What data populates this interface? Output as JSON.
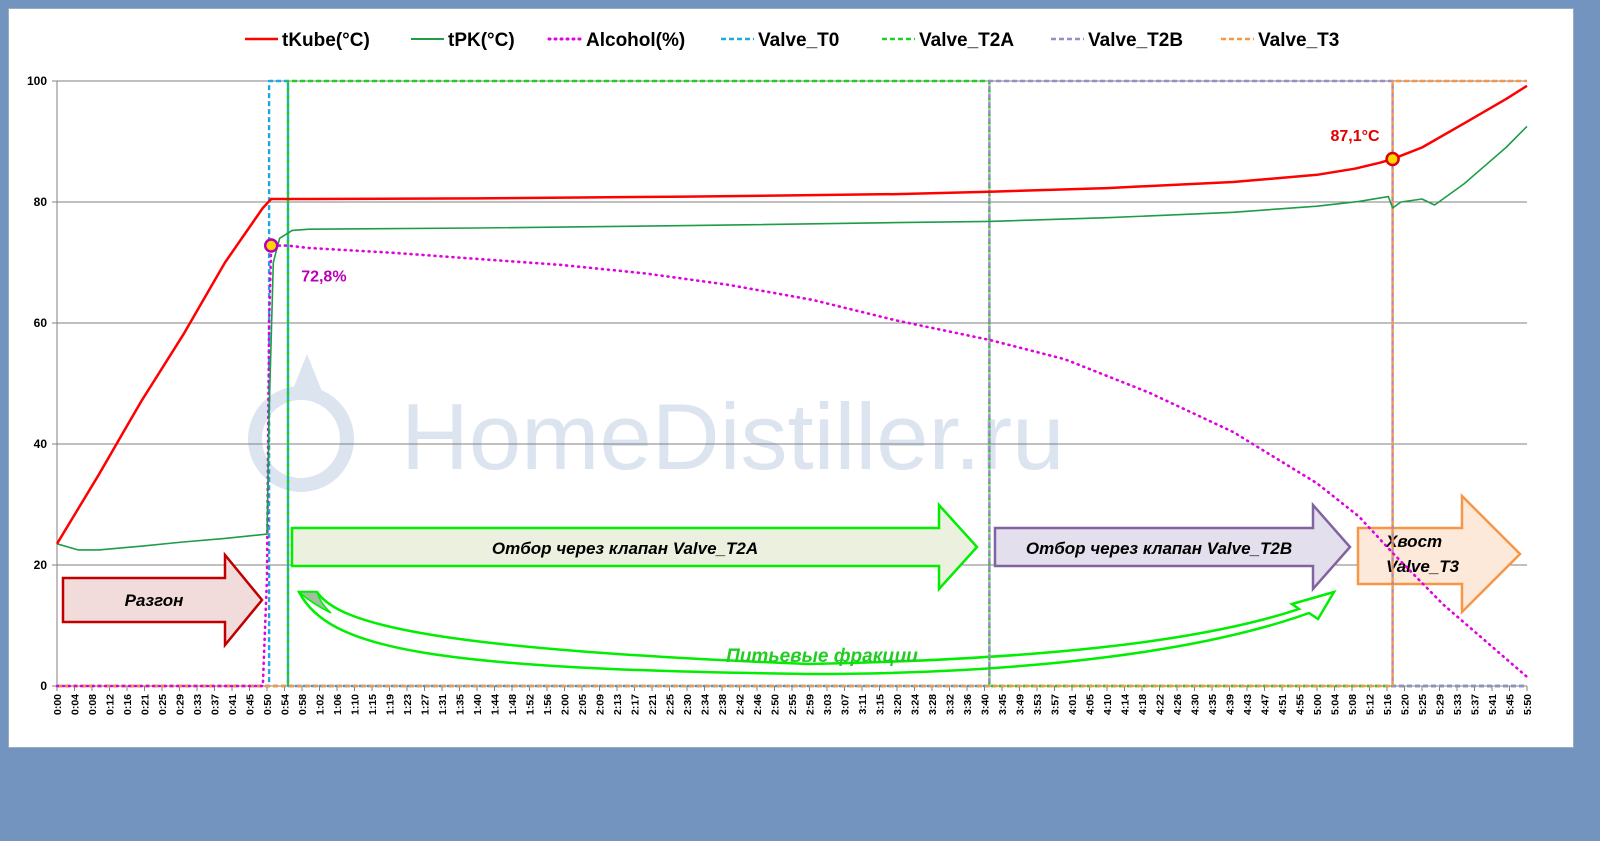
{
  "chart_data": {
    "type": "line",
    "legend_position": "top",
    "grid": true,
    "ylim": [
      0,
      100
    ],
    "yticks": [
      0,
      20,
      40,
      60,
      80,
      100
    ],
    "x_labels": [
      "0:00",
      "0:04",
      "0:08",
      "0:12",
      "0:16",
      "0:21",
      "0:25",
      "0:29",
      "0:33",
      "0:37",
      "0:41",
      "0:45",
      "0:50",
      "0:54",
      "0:58",
      "1:02",
      "1:06",
      "1:10",
      "1:15",
      "1:19",
      "1:23",
      "1:27",
      "1:31",
      "1:35",
      "1:40",
      "1:44",
      "1:48",
      "1:52",
      "1:56",
      "2:00",
      "2:05",
      "2:09",
      "2:13",
      "2:17",
      "2:21",
      "2:25",
      "2:30",
      "2:34",
      "2:38",
      "2:42",
      "2:46",
      "2:50",
      "2:55",
      "2:59",
      "3:03",
      "3:07",
      "3:11",
      "3:15",
      "3:20",
      "3:24",
      "3:28",
      "3:32",
      "3:36",
      "3:40",
      "3:45",
      "3:49",
      "3:53",
      "3:57",
      "4:01",
      "4:05",
      "4:10",
      "4:14",
      "4:18",
      "4:22",
      "4:26",
      "4:30",
      "4:35",
      "4:39",
      "4:43",
      "4:47",
      "4:51",
      "4:55",
      "5:00",
      "5:04",
      "5:08",
      "5:12",
      "5:16",
      "5:20",
      "5:25",
      "5:29",
      "5:33",
      "5:37",
      "5:41",
      "5:45",
      "5:50"
    ],
    "x_range_min": [
      0,
      350
    ],
    "series": [
      {
        "name": "tKube(°C)",
        "color": "#ff0000",
        "style": "solid",
        "width": 2.5,
        "points": [
          [
            0,
            23.5
          ],
          [
            10,
            35
          ],
          [
            20,
            47
          ],
          [
            30,
            58
          ],
          [
            40,
            70
          ],
          [
            49,
            79
          ],
          [
            51,
            80.5
          ],
          [
            60,
            80.5
          ],
          [
            100,
            80.6
          ],
          [
            150,
            80.9
          ],
          [
            200,
            81.3
          ],
          [
            222,
            81.7
          ],
          [
            250,
            82.3
          ],
          [
            280,
            83.3
          ],
          [
            300,
            84.5
          ],
          [
            309,
            85.5
          ],
          [
            315,
            86.5
          ],
          [
            318,
            87.1
          ],
          [
            325,
            89
          ],
          [
            335,
            93
          ],
          [
            345,
            97
          ],
          [
            350,
            99.2
          ]
        ]
      },
      {
        "name": "tPK(°C)",
        "color": "#1f9c48",
        "style": "solid",
        "width": 1.6,
        "points": [
          [
            0,
            23.5
          ],
          [
            5,
            22.5
          ],
          [
            10,
            22.5
          ],
          [
            20,
            23.1
          ],
          [
            30,
            23.8
          ],
          [
            40,
            24.4
          ],
          [
            50,
            25.1
          ],
          [
            50.5,
            45
          ],
          [
            51.5,
            70
          ],
          [
            53,
            74
          ],
          [
            56,
            75.3
          ],
          [
            60,
            75.5
          ],
          [
            100,
            75.7
          ],
          [
            150,
            76.1
          ],
          [
            200,
            76.6
          ],
          [
            222,
            76.8
          ],
          [
            250,
            77.4
          ],
          [
            280,
            78.3
          ],
          [
            300,
            79.3
          ],
          [
            310,
            80.1
          ],
          [
            317,
            80.9
          ],
          [
            318,
            79
          ],
          [
            320,
            80
          ],
          [
            325,
            80.5
          ],
          [
            328,
            79.5
          ],
          [
            335,
            83
          ],
          [
            340,
            86
          ],
          [
            345,
            89
          ],
          [
            350,
            92.5
          ]
        ]
      },
      {
        "name": "Alcohol(%)",
        "color": "#e000e0",
        "style": "dotted",
        "width": 2.6,
        "points": [
          [
            0,
            0
          ],
          [
            49,
            0
          ],
          [
            50,
            18
          ],
          [
            50.5,
            60
          ],
          [
            51,
            72.8
          ],
          [
            55,
            72.8
          ],
          [
            60,
            72.4
          ],
          [
            80,
            71.6
          ],
          [
            100,
            70.6
          ],
          [
            120,
            69.6
          ],
          [
            140,
            68.2
          ],
          [
            160,
            66.3
          ],
          [
            180,
            63.8
          ],
          [
            200,
            60.4
          ],
          [
            222,
            57.2
          ],
          [
            240,
            54
          ],
          [
            260,
            48.5
          ],
          [
            280,
            42
          ],
          [
            300,
            33.5
          ],
          [
            310,
            28
          ],
          [
            318,
            22
          ],
          [
            330,
            13.5
          ],
          [
            340,
            7.5
          ],
          [
            350,
            1.5
          ]
        ]
      },
      {
        "name": "Valve_T0",
        "color": "#1ea7e1",
        "style": "dashed",
        "width": 2.4,
        "points": [
          [
            0,
            0
          ],
          [
            50.5,
            0
          ],
          [
            50.5,
            100
          ],
          [
            55,
            100
          ],
          [
            55,
            0
          ],
          [
            350,
            0
          ]
        ]
      },
      {
        "name": "Valve_T2A",
        "color": "#22cc22",
        "style": "dashed",
        "width": 2.4,
        "points": [
          [
            0,
            0
          ],
          [
            55,
            0
          ],
          [
            55,
            100
          ],
          [
            222,
            100
          ],
          [
            222,
            0
          ],
          [
            350,
            0
          ]
        ]
      },
      {
        "name": "Valve_T2B",
        "color": "#9b8bc6",
        "style": "dashed",
        "width": 2.4,
        "points": [
          [
            0,
            0
          ],
          [
            222,
            0
          ],
          [
            222,
            100
          ],
          [
            318,
            100
          ],
          [
            318,
            0
          ],
          [
            350,
            0
          ]
        ]
      },
      {
        "name": "Valve_T3",
        "color": "#f79646",
        "style": "dashed",
        "width": 2.4,
        "points": [
          [
            0,
            0
          ],
          [
            318,
            0
          ],
          [
            318,
            100
          ],
          [
            350,
            100
          ]
        ]
      }
    ],
    "markers": [
      {
        "label": "87,1°C",
        "x": 318,
        "y": 87.1,
        "color": "#e00000",
        "fill": "#ffd700"
      },
      {
        "label": "72,8%",
        "x": 51,
        "y": 72.8,
        "color": "#b800b8",
        "fill": "#ffd700"
      }
    ],
    "annotations": {
      "razgon": "Разгон",
      "t2a": "Отбор через клапан Valve_T2A",
      "t2b": "Отбор через клапан Valve_T2B",
      "t3_line1": "Хвост",
      "t3_line2": "Valve_T3",
      "drinking": "Питьевые  фракции"
    },
    "watermark": "HomeDistiller.ru"
  }
}
